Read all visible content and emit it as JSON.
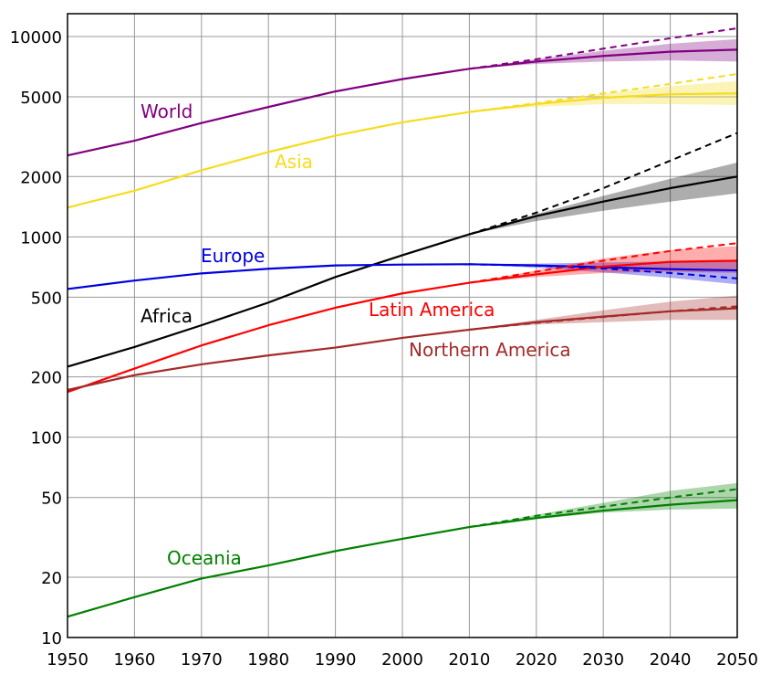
{
  "chart_data": {
    "type": "line",
    "xlim": [
      1950,
      2050
    ],
    "ylim": [
      10,
      13000
    ],
    "yscale": "log",
    "grid": true,
    "legend": "inline labels",
    "x_ticks": [
      "1950",
      "1960",
      "1970",
      "1980",
      "1990",
      "2000",
      "2010",
      "2020",
      "2030",
      "2040",
      "2050"
    ],
    "y_ticks": [
      {
        "value": 10,
        "label": "10"
      },
      {
        "value": 20,
        "label": "20"
      },
      {
        "value": 50,
        "label": "50"
      },
      {
        "value": 100,
        "label": "100"
      },
      {
        "value": 200,
        "label": "200"
      },
      {
        "value": 500,
        "label": "500"
      },
      {
        "value": 1000,
        "label": "1000"
      },
      {
        "value": 2000,
        "label": "2000"
      },
      {
        "value": 5000,
        "label": "5000"
      },
      {
        "value": 10000,
        "label": "10000"
      }
    ],
    "series": [
      {
        "name": "World",
        "color": "#800080",
        "x": [
          1950,
          1960,
          1970,
          1980,
          1990,
          2000,
          2010,
          2020,
          2030,
          2040,
          2050
        ],
        "values": [
          2550,
          3020,
          3700,
          4450,
          5320,
          6130,
          6900,
          7500,
          8000,
          8400,
          8600
        ],
        "dashed": {
          "x": [
            2010,
            2020,
            2030,
            2040,
            2050
          ],
          "values": [
            6900,
            7700,
            8700,
            9800,
            11000
          ]
        },
        "band": {
          "x": [
            2010,
            2020,
            2030,
            2040,
            2050
          ],
          "low": [
            6900,
            7300,
            7500,
            7600,
            7500
          ],
          "high": [
            6900,
            7700,
            8500,
            9200,
            9700
          ]
        }
      },
      {
        "name": "Asia",
        "color": "#f5dc1e",
        "x": [
          1950,
          1960,
          1970,
          1980,
          1990,
          2000,
          2010,
          2020,
          2030,
          2040,
          2050
        ],
        "values": [
          1400,
          1700,
          2150,
          2650,
          3200,
          3730,
          4200,
          4600,
          4950,
          5150,
          5200
        ],
        "dashed": {
          "x": [
            2010,
            2020,
            2030,
            2040,
            2050
          ],
          "values": [
            4200,
            4650,
            5200,
            5800,
            6500
          ]
        },
        "band": {
          "x": [
            2010,
            2020,
            2030,
            2040,
            2050
          ],
          "low": [
            4200,
            4450,
            4600,
            4600,
            4550
          ],
          "high": [
            4200,
            4650,
            5200,
            5650,
            6000
          ]
        }
      },
      {
        "name": "Africa",
        "color": "#000000",
        "x": [
          1950,
          1960,
          1970,
          1980,
          1990,
          2000,
          2010,
          2020,
          2030,
          2040,
          2050
        ],
        "values": [
          225,
          282,
          362,
          470,
          630,
          810,
          1030,
          1270,
          1500,
          1750,
          2000
        ],
        "dashed": {
          "x": [
            2010,
            2020,
            2030,
            2040,
            2050
          ],
          "values": [
            1030,
            1320,
            1750,
            2400,
            3300
          ]
        },
        "band": {
          "x": [
            2010,
            2020,
            2030,
            2040,
            2050
          ],
          "low": [
            1030,
            1200,
            1350,
            1500,
            1650
          ],
          "high": [
            1030,
            1300,
            1600,
            1950,
            2350
          ]
        }
      },
      {
        "name": "Europe",
        "color": "#0000e0",
        "x": [
          1950,
          1960,
          1970,
          1980,
          1990,
          2000,
          2010,
          2020,
          2030,
          2040,
          2050
        ],
        "values": [
          549,
          605,
          657,
          693,
          720,
          727,
          730,
          720,
          705,
          690,
          680
        ],
        "dashed": {
          "x": [
            2010,
            2020,
            2030,
            2040,
            2050
          ],
          "values": [
            730,
            718,
            695,
            660,
            620
          ]
        },
        "band": {
          "x": [
            2010,
            2020,
            2030,
            2040,
            2050
          ],
          "low": [
            730,
            700,
            665,
            625,
            580
          ],
          "high": [
            730,
            735,
            745,
            755,
            770
          ]
        }
      },
      {
        "name": "Latin America",
        "color": "#ff0000",
        "x": [
          1950,
          1960,
          1970,
          1980,
          1990,
          2000,
          2010,
          2020,
          2030,
          2040,
          2050
        ],
        "values": [
          168,
          220,
          287,
          362,
          443,
          522,
          590,
          650,
          710,
          750,
          760
        ],
        "dashed": {
          "x": [
            2010,
            2020,
            2030,
            2040,
            2050
          ],
          "values": [
            590,
            670,
            760,
            850,
            930
          ]
        },
        "band": {
          "x": [
            2010,
            2020,
            2030,
            2040,
            2050
          ],
          "low": [
            590,
            630,
            660,
            670,
            660
          ],
          "high": [
            590,
            680,
            780,
            860,
            900
          ]
        }
      },
      {
        "name": "Northern America",
        "color": "#a52a2a",
        "x": [
          1950,
          1960,
          1970,
          1980,
          1990,
          2000,
          2010,
          2020,
          2030,
          2040,
          2050
        ],
        "values": [
          172,
          204,
          231,
          256,
          280,
          313,
          344,
          375,
          400,
          425,
          440
        ],
        "dashed": {
          "x": [
            2010,
            2020,
            2030,
            2040,
            2050
          ],
          "values": [
            344,
            372,
            398,
            425,
            450
          ]
        },
        "band": {
          "x": [
            2010,
            2020,
            2030,
            2040,
            2050
          ],
          "low": [
            344,
            365,
            375,
            385,
            385
          ],
          "high": [
            344,
            385,
            430,
            475,
            510
          ]
        }
      },
      {
        "name": "Oceania",
        "color": "#008000",
        "x": [
          1950,
          1960,
          1970,
          1980,
          1990,
          2000,
          2010,
          2020,
          2030,
          2040,
          2050
        ],
        "values": [
          12.7,
          15.9,
          19.7,
          22.9,
          27.0,
          31.1,
          35.6,
          39.5,
          43.0,
          46.0,
          48.5
        ],
        "dashed": {
          "x": [
            2010,
            2020,
            2030,
            2040,
            2050
          ],
          "values": [
            35.6,
            40.5,
            45.0,
            50.0,
            55.0
          ]
        },
        "band": {
          "x": [
            2010,
            2020,
            2030,
            2040,
            2050
          ],
          "low": [
            35.6,
            39.0,
            42.0,
            43.5,
            44.0
          ],
          "high": [
            35.6,
            41.0,
            47.0,
            54.0,
            59.0
          ]
        }
      }
    ]
  }
}
